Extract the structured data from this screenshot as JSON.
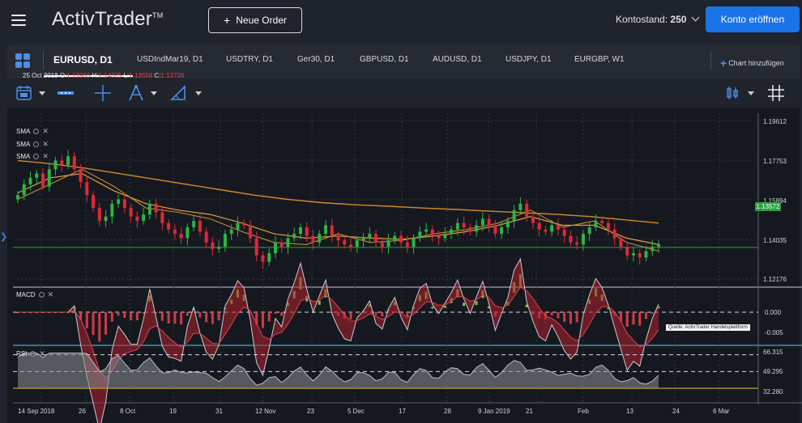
{
  "header": {
    "brand": "ActivTrader",
    "brand_tm": "TM",
    "new_order_label": "Neue Order",
    "balance_label": "Kontostand:",
    "balance_value": "250",
    "open_account_label": "Konto eröffnen"
  },
  "tabs": [
    {
      "label": "EURUSD, D1",
      "active": true
    },
    {
      "label": "USDIndMar19, D1"
    },
    {
      "label": "USDTRY, D1"
    },
    {
      "label": "Ger30, D1"
    },
    {
      "label": "GBPUSD, D1"
    },
    {
      "label": "AUDUSD, D1"
    },
    {
      "label": "USDJPY, D1"
    },
    {
      "label": "EURGBP, W1"
    }
  ],
  "add_chart_label": "Chart hinzufügen",
  "toolbar": {
    "icons": [
      "calendar-icon",
      "chart-type-icon",
      "crosshair-icon",
      "drawing-tools-icon",
      "ruler-icon",
      "candle-style-icon",
      "grid-toggle-icon"
    ]
  },
  "ohlc": {
    "date": "25 Oct 2018",
    "o_label": "O:",
    "o": "1.13963",
    "h_label": "H:",
    "h": "1.14325",
    "l_label": "L:",
    "l": "1.13558",
    "c_label": "C:",
    "c": "1.13726"
  },
  "indicators": {
    "sma": [
      "SMA",
      "SMA",
      "SMA"
    ],
    "macd": "MACD",
    "rsi": "RSI"
  },
  "price_axis": [
    "1.19612",
    "1.17753",
    "1.15894",
    "1.14035",
    "1.12176"
  ],
  "current_price": "1.13572",
  "macd_axis": [
    "0.000",
    "-0.005"
  ],
  "rsi_axis": [
    "66.315",
    "49.295",
    "32.280"
  ],
  "time_axis": [
    "14 Sep 2018",
    "26",
    "8 Oct",
    "19",
    "31",
    "12 Nov",
    "23",
    "5 Dec",
    "17",
    "28",
    "9 Jan 2019",
    "21",
    "Feb",
    "13",
    "24",
    "6 Mar"
  ],
  "source_label": "Quelle: ActivTrader Handelsplattform",
  "colors": {
    "bull": "#2fb344",
    "bear": "#e0283a",
    "sma_long": "#d4892a",
    "sma_mid": "#e0a040",
    "current_line": "#2f9e44",
    "accent": "#1b73e8"
  },
  "chart_data": {
    "type": "candlestick",
    "symbol": "EURUSD",
    "timeframe": "D1",
    "ylim": [
      1.118,
      1.198
    ],
    "closes": [
      1.16,
      1.165,
      1.168,
      1.17,
      1.164,
      1.172,
      1.176,
      1.174,
      1.178,
      1.172,
      1.166,
      1.16,
      1.154,
      1.148,
      1.15,
      1.156,
      1.158,
      1.154,
      1.15,
      1.148,
      1.151,
      1.156,
      1.152,
      1.147,
      1.144,
      1.142,
      1.14,
      1.145,
      1.148,
      1.143,
      1.138,
      1.135,
      1.136,
      1.142,
      1.144,
      1.147,
      1.146,
      1.14,
      1.132,
      1.129,
      1.133,
      1.138,
      1.136,
      1.14,
      1.142,
      1.145,
      1.141,
      1.138,
      1.142,
      1.146,
      1.141,
      1.139,
      1.137,
      1.136,
      1.139,
      1.14,
      1.142,
      1.138,
      1.136,
      1.139,
      1.141,
      1.138,
      1.136,
      1.14,
      1.143,
      1.144,
      1.141,
      1.14,
      1.142,
      1.144,
      1.147,
      1.145,
      1.143,
      1.146,
      1.149,
      1.146,
      1.142,
      1.145,
      1.148,
      1.153,
      1.156,
      1.15,
      1.147,
      1.144,
      1.143,
      1.146,
      1.144,
      1.141,
      1.138,
      1.137,
      1.142,
      1.145,
      1.148,
      1.147,
      1.144,
      1.14,
      1.136,
      1.132,
      1.133,
      1.131,
      1.134,
      1.136,
      1.1372
    ],
    "sma_long": [
      1.176,
      1.1745,
      1.1725,
      1.17,
      1.1675,
      1.165,
      1.1625,
      1.16,
      1.158,
      1.1565,
      1.1555,
      1.1548,
      1.154,
      1.1533,
      1.1525,
      1.1518,
      1.151,
      1.15,
      1.1485,
      1.147
    ],
    "sma_mid": [
      1.161,
      1.168,
      1.17,
      1.162,
      1.156,
      1.153,
      1.151,
      1.147,
      1.142,
      1.14,
      1.141,
      1.14,
      1.1395,
      1.141,
      1.143,
      1.146,
      1.15,
      1.146,
      1.146,
      1.14,
      1.137
    ],
    "sma_short": [
      1.158,
      1.165,
      1.172,
      1.164,
      1.154,
      1.152,
      1.149,
      1.143,
      1.138,
      1.137,
      1.142,
      1.138,
      1.139,
      1.142,
      1.144,
      1.147,
      1.153,
      1.145,
      1.148,
      1.138,
      1.134
    ],
    "macd_range": [
      -0.007,
      0.003
    ],
    "rsi_range": [
      20,
      75
    ],
    "rsi_levels": [
      66.315,
      49.295,
      32.28
    ]
  }
}
